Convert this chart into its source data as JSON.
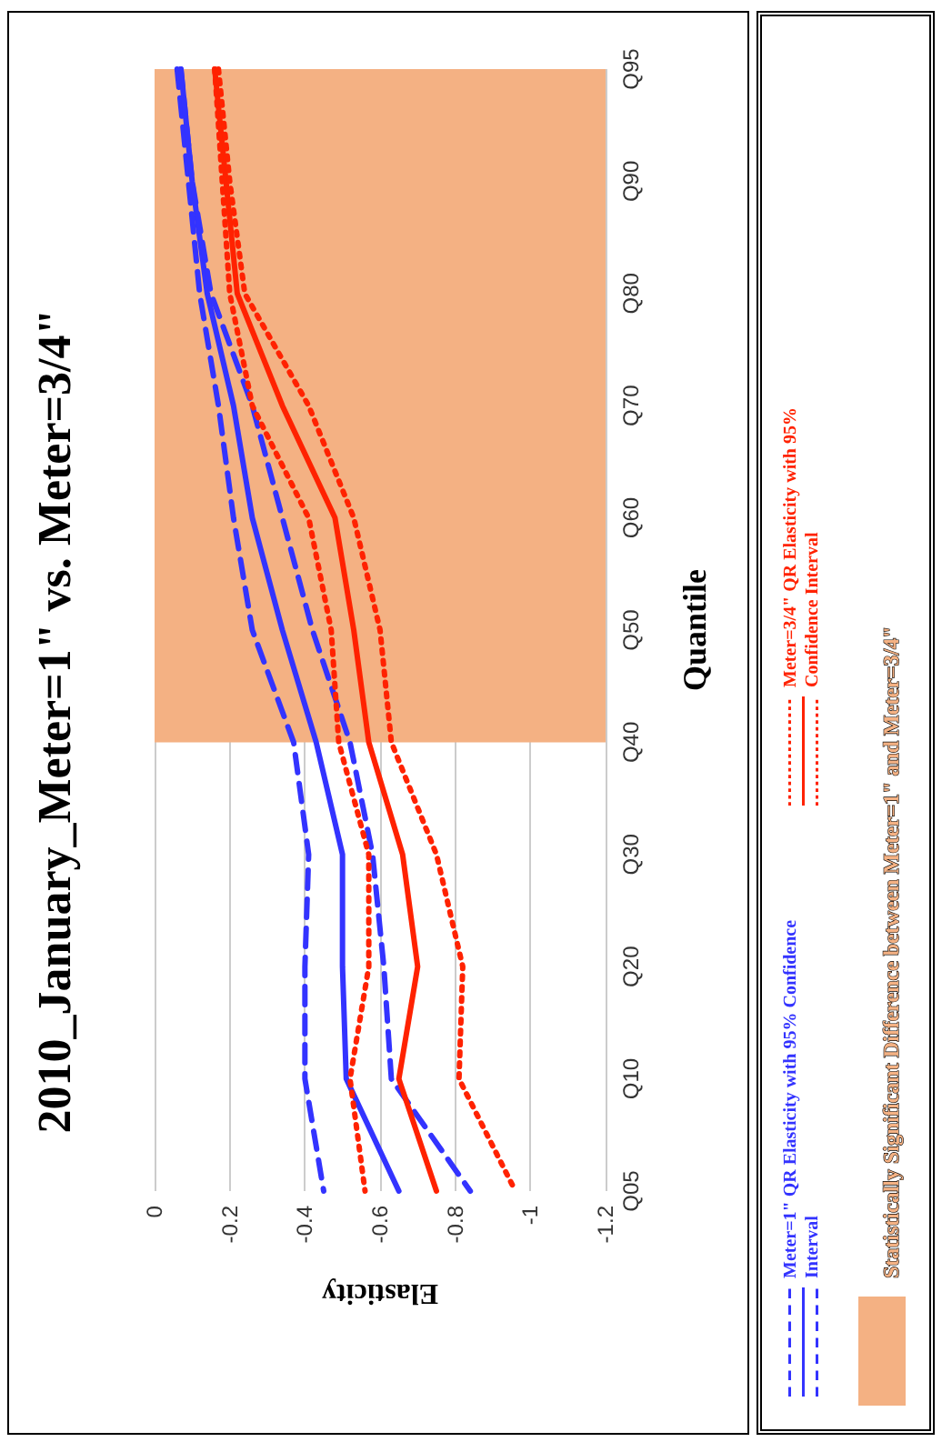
{
  "chart_data": {
    "type": "line",
    "orientation": "horizontal",
    "title": "2010_January_Meter=1\" vs. Meter=3/4\"",
    "xlabel": "Elasticity",
    "ylabel": "Quantile",
    "categories": [
      "Q95",
      "Q90",
      "Q80",
      "Q70",
      "Q60",
      "Q50",
      "Q40",
      "Q30",
      "Q20",
      "Q10",
      "Q05"
    ],
    "series": [
      {
        "name": "Meter=1\" QR Elasticity with 95% Confidence Interval",
        "color": "#3333ff",
        "line_style": "solid",
        "values": [
          -0.07,
          -0.1,
          -0.14,
          -0.21,
          -0.26,
          -0.34,
          -0.43,
          -0.5,
          -0.5,
          -0.51,
          -0.65
        ]
      },
      {
        "color": "#3333ff",
        "line_style": "dashed",
        "values": [
          -0.06,
          -0.09,
          -0.12,
          -0.17,
          -0.21,
          -0.26,
          -0.37,
          -0.41,
          -0.4,
          -0.4,
          -0.45
        ]
      },
      {
        "color": "#3333ff",
        "line_style": "dashed",
        "values": [
          -0.07,
          -0.1,
          -0.15,
          -0.26,
          -0.34,
          -0.42,
          -0.52,
          -0.58,
          -0.61,
          -0.63,
          -0.84
        ]
      },
      {
        "name": "Meter=3/4\" QR Elasticity with 95% Confidence Interval",
        "color": "#ff2200",
        "line_style": "solid",
        "values": [
          -0.16,
          -0.19,
          -0.22,
          -0.34,
          -0.48,
          -0.53,
          -0.57,
          -0.66,
          -0.7,
          -0.65,
          -0.75
        ]
      },
      {
        "color": "#ff2200",
        "line_style": "dotted",
        "values": [
          -0.16,
          -0.18,
          -0.2,
          -0.26,
          -0.41,
          -0.47,
          -0.49,
          -0.57,
          -0.57,
          -0.52,
          -0.56
        ]
      },
      {
        "color": "#ff2200",
        "line_style": "dotted",
        "values": [
          -0.17,
          -0.2,
          -0.24,
          -0.41,
          -0.53,
          -0.6,
          -0.63,
          -0.75,
          -0.82,
          -0.81,
          -0.96
        ]
      }
    ],
    "bands": [
      {
        "axis": "y",
        "from": "Q95",
        "to": "Q40",
        "label": "Statistically Significant Difference between Meter=1\" and Meter=3/4\"",
        "color": "#f4b183"
      }
    ],
    "xlim": [
      0,
      -1.2
    ],
    "xticks": [
      0,
      -0.2,
      -0.4,
      -0.6,
      -0.8,
      -1,
      -1.2
    ],
    "grid": "x",
    "legend": "right",
    "marker": "none"
  }
}
